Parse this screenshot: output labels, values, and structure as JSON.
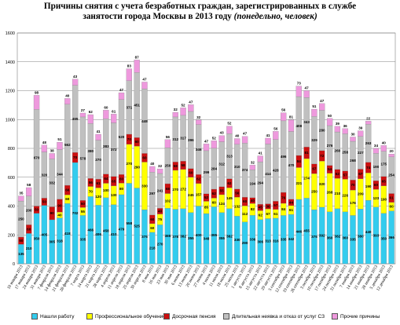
{
  "chart_data": {
    "type": "bar",
    "stacked": true,
    "title_line1": "Причины снятия с учета безработных граждан, зарегистрированных в службе",
    "title_line2": "занятости   города Москвы в 2013 году",
    "title_suffix": "(понедельно, человек)",
    "ylim": [
      0,
      1600
    ],
    "yticks": [
      0,
      200,
      400,
      600,
      800,
      1000,
      1200,
      1400,
      1600
    ],
    "categories": [
      "10 января 2013",
      "17 января 2013",
      "24 января 2013",
      "31 января 2013",
      "7 февраля 2013",
      "14 февраля 2013",
      "21 февраля 2013",
      "28 февраля 2013",
      "7 марта 2013",
      "14 марта 2013",
      "21 марта 2013",
      "28 марта 2013",
      "4 апреля 2013",
      "11 апреля 2013",
      "18 апреля 2013",
      "25 апреля 2013",
      "30 апреля 2013",
      "8 мая 2013",
      "16 мая 2013",
      "23 мая 2013",
      "30 мая 2013",
      "6 июня 2013",
      "13 июня 2013",
      "20 июня 2013",
      "27 июня 2013",
      "4 июля 2013",
      "11 июля 2013",
      "18 июля 2013",
      "25 июля 2013",
      "1 августа 2013",
      "8 августа 2013",
      "15 августа 2013",
      "22 августа 2013",
      "29 августа 2013",
      "5 сентября 2013",
      "12 сентября 2013",
      "19 сентября 2013",
      "26 сентября 2013",
      "3 октября 2013",
      "10 октября 2013",
      "17 октября 2013",
      "24 октября 2013",
      "31 октября 2013",
      "7 ноября 2013",
      "14 ноября 2013",
      "21 ноября 2013",
      "28 ноября 2013",
      "5 декабря 2013",
      "12 декабря 2013"
    ],
    "series": [
      {
        "name": "Нашли работу",
        "color": "#33CCEE",
        "values": [
          135,
          210,
          350,
          405,
          305,
          318,
          418,
          702,
          335,
          466,
          406,
          458,
          410,
          479,
          558,
          525,
          375,
          218,
          270,
          385,
          378,
          382,
          355,
          400,
          348,
          395,
          355,
          382,
          330,
          290,
          336,
          306,
          313,
          316,
          335,
          342,
          446,
          455,
          375,
          392,
          360,
          382,
          360,
          335,
          380,
          440,
          393,
          350,
          366
        ]
      },
      {
        "name": "Профессиональное обучение",
        "color": "#FFFF00",
        "values": [
          0,
          0,
          0,
          0,
          0,
          40,
          60,
          0,
          55,
          70,
          120,
          100,
          130,
          80,
          270,
          290,
          330,
          60,
          75,
          102,
          270,
          272,
          245,
          157,
          85,
          60,
          124,
          145,
          132,
          112,
          82,
          62,
          67,
          61,
          84,
          61,
          221,
          274,
          250,
          320,
          268,
          210,
          226,
          176,
          209,
          190,
          123,
          190,
          60
        ]
      },
      {
        "name": "Досрочная пенсия",
        "color": "#CC1010",
        "values": [
          50,
          60,
          50,
          50,
          90,
          90,
          66,
          70,
          50,
          56,
          61,
          64,
          65,
          60,
          70,
          60,
          60,
          60,
          40,
          68,
          58,
          58,
          60,
          62,
          52,
          62,
          55,
          62,
          56,
          60,
          40,
          45,
          36,
          57,
          76,
          44,
          84,
          81,
          67,
          72,
          54,
          62,
          57,
          70,
          67,
          74,
          60,
          65,
          61
        ]
      },
      {
        "name": "Длительная неявка и отказ  от услуг СЗ",
        "color": "#C0C0C0",
        "values": [
          250,
          200,
          670,
          320,
          332,
          344,
          562,
          465,
          578,
          380,
          270,
          383,
          372,
          520,
          371,
          451,
          448,
          297,
          241,
          250,
          312,
          317,
          396,
          346,
          299,
          284,
          312,
          313,
          310,
          374,
          194,
          294,
          414,
          428,
          496,
          470,
          408,
          343,
          329,
          280,
          276,
          260,
          258,
          268,
          227,
          263,
          190,
          175,
          254
        ]
      },
      {
        "name": "Прочие причины",
        "color": "#EE99DD",
        "values": [
          35,
          58,
          98,
          48,
          38,
          51,
          40,
          43,
          27,
          62,
          41,
          60,
          61,
          47,
          83,
          87,
          47,
          40,
          32,
          56,
          32,
          52,
          47,
          32,
          47,
          52,
          43,
          52,
          40,
          47,
          32,
          41,
          41,
          56,
          56,
          81,
          73,
          47,
          51,
          47,
          50,
          39,
          36,
          30,
          39,
          22,
          34,
          40,
          20
        ]
      }
    ]
  }
}
